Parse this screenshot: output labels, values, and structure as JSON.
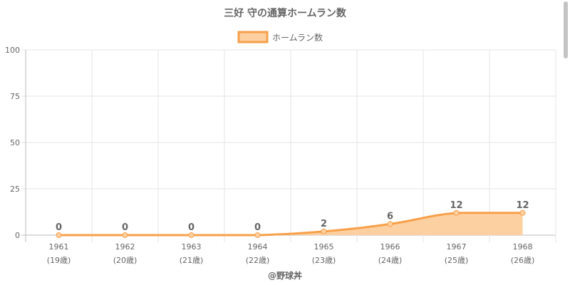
{
  "chart_data": {
    "type": "line",
    "title": "三好 守の通算ホームラン数",
    "legend_position": "top",
    "series": [
      {
        "name": "ホームラン数",
        "values": [
          0,
          0,
          0,
          0,
          2,
          6,
          12,
          12
        ],
        "line_color": "#f7a04a",
        "fill_color": "#fdd0a2"
      }
    ],
    "categories": [
      [
        "1961",
        "(19歳)"
      ],
      [
        "1962",
        "(20歳)"
      ],
      [
        "1963",
        "(21歳)"
      ],
      [
        "1964",
        "(22歳)"
      ],
      [
        "1965",
        "(23歳)"
      ],
      [
        "1966",
        "(24歳)"
      ],
      [
        "1967",
        "(25歳)"
      ],
      [
        "1968",
        "(26歳)"
      ]
    ],
    "ylim": [
      0,
      100
    ],
    "yticks": [
      0,
      25,
      50,
      75,
      100
    ],
    "grid": true,
    "data_labels": true,
    "credit": "@野球丼"
  },
  "colors": {
    "grid": "#e6e6e6",
    "axis": "#bdbdbd",
    "text": "#666666",
    "title": "#666666"
  }
}
